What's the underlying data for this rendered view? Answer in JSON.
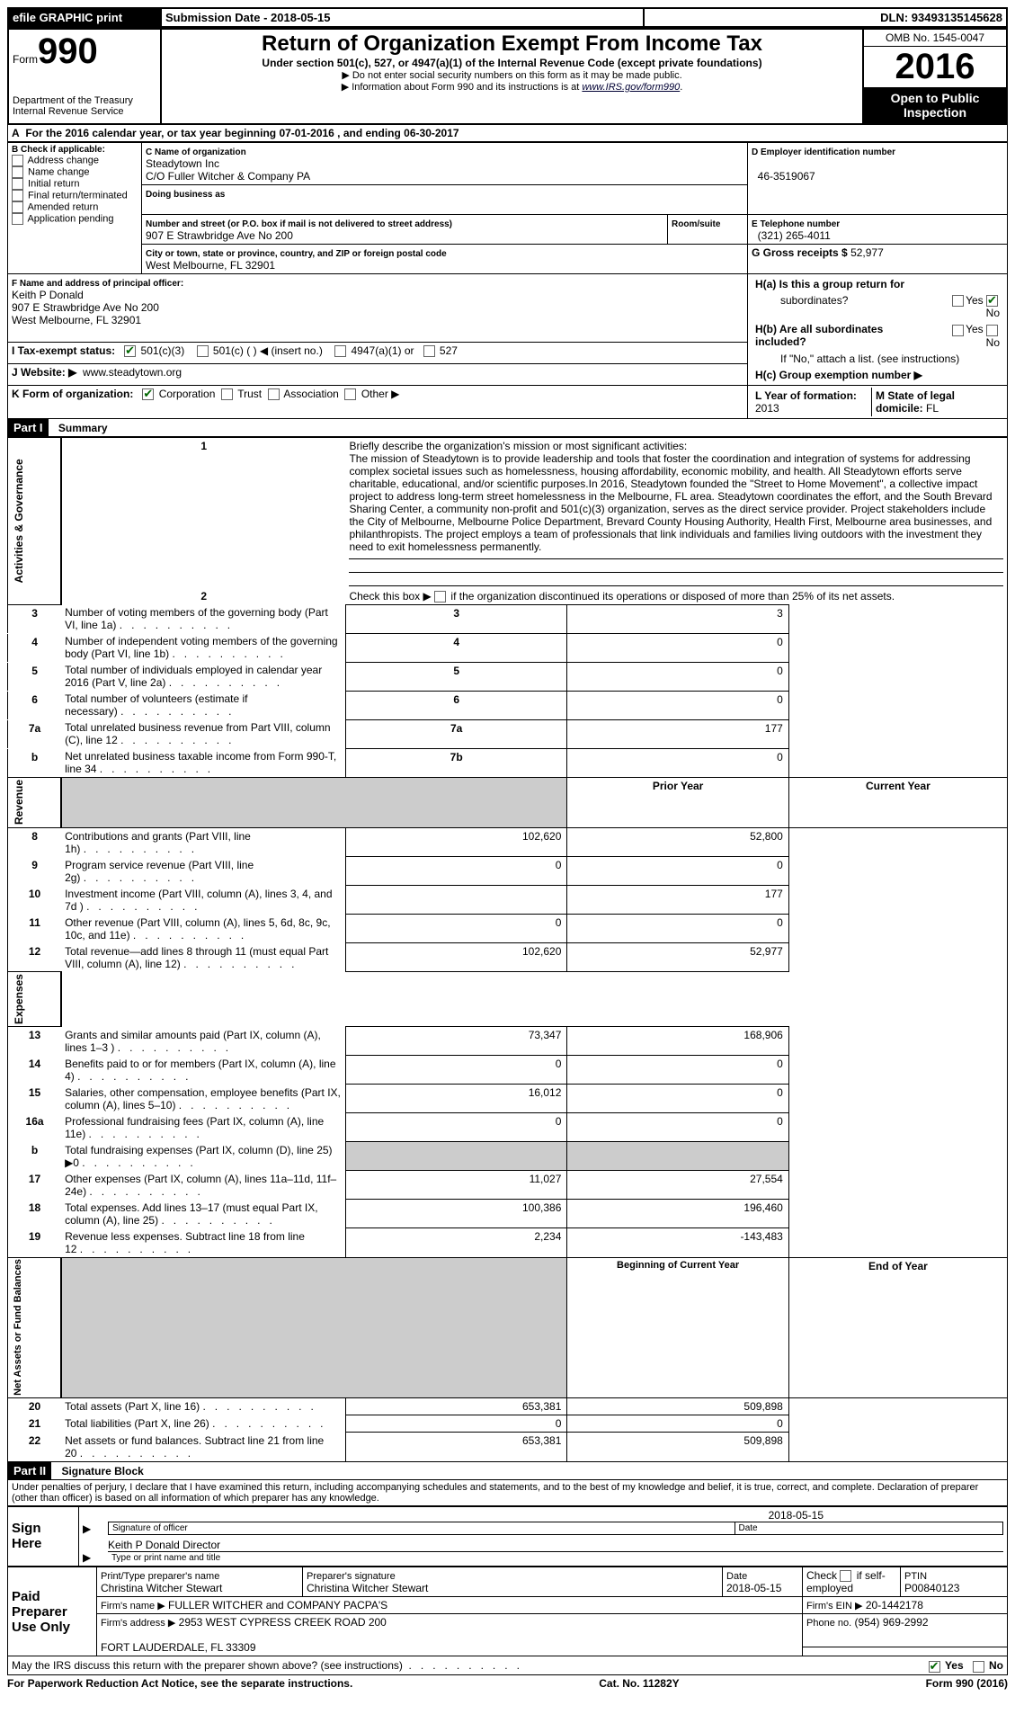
{
  "header": {
    "efile": "efile GRAPHIC print",
    "submission_label": "Submission Date - 2018-05-15",
    "dln_label": "DLN: 93493135145628",
    "form_word": "Form",
    "form_no": "990",
    "dept": "Department of the Treasury",
    "irs": "Internal Revenue Service",
    "title": "Return of Organization Exempt From Income Tax",
    "subtitle": "Under section 501(c), 527, or 4947(a)(1) of the Internal Revenue Code (except private foundations)",
    "note1": "Do not enter social security numbers on this form as it may be made public.",
    "note2": "Information about Form 990 and its instructions is at ",
    "url": "www.IRS.gov/form990",
    "omb": "OMB No. 1545-0047",
    "year": "2016",
    "open": "Open to Public Inspection"
  },
  "a": {
    "banner": "For the 2016 calendar year, or tax year beginning 07-01-2016  , and ending 06-30-2017"
  },
  "b": {
    "header": "Check if applicable:",
    "items": [
      "Address change",
      "Name change",
      "Initial return",
      "Final return/terminated",
      "Amended return",
      "Application pending"
    ]
  },
  "c": {
    "label": "C Name of organization",
    "name": "Steadytown Inc",
    "co": "C/O Fuller Witcher & Company PA",
    "dba_label": "Doing business as",
    "addr_label": "Number and street (or P.O. box if mail is not delivered to street address)",
    "room_label": "Room/suite",
    "addr": "907 E Strawbridge Ave No 200",
    "city_label": "City or town, state or province, country, and ZIP or foreign postal code",
    "city": "West Melbourne, FL  32901"
  },
  "d": {
    "label": "D Employer identification number",
    "val": "46-3519067"
  },
  "e": {
    "label": "E Telephone number",
    "val": "(321) 265-4011"
  },
  "g": {
    "label": "G Gross receipts $",
    "val": "52,977"
  },
  "f": {
    "label": "F  Name and address of principal officer:",
    "name": "Keith P Donald",
    "addr": "907 E Strawbridge Ave No 200",
    "city": "West Melbourne, FL  32901"
  },
  "h": {
    "a_label": "H(a)  Is this a group return for",
    "a_sub": "subordinates?",
    "b_label": "H(b)  Are all subordinates included?",
    "b_note": "If \"No,\" attach a list. (see instructions)",
    "c_label": "H(c)  Group exemption number ▶",
    "yes": "Yes",
    "no": "No"
  },
  "i": {
    "label": "I  Tax-exempt status:",
    "opts": [
      "501(c)(3)",
      "501(c) (  ) ◀ (insert no.)",
      "4947(a)(1) or",
      "527"
    ]
  },
  "j": {
    "label": "J  Website: ▶",
    "val": "www.steadytown.org"
  },
  "k": {
    "label": "K Form of organization:",
    "opts": [
      "Corporation",
      "Trust",
      "Association",
      "Other ▶"
    ]
  },
  "l": {
    "label": "L Year of formation:",
    "val": "2013"
  },
  "m": {
    "label": "M State of legal domicile:",
    "val": "FL"
  },
  "partI": {
    "label": "Part I",
    "title": "Summary"
  },
  "summary": {
    "mission_label": "Briefly describe the organization's mission or most significant activities:",
    "mission": "The mission of Steadytown is to provide leadership and tools that foster the coordination and integration of systems for addressing complex societal issues such as homelessness, housing affordability, economic mobility, and health. All Steadytown efforts serve charitable, educational, and/or scientific purposes.In 2016, Steadytown founded the \"Street to Home Movement\", a collective impact project to address long-term street homelessness in the Melbourne, FL area. Steadytown coordinates the effort, and the South Brevard Sharing Center, a community non-profit and 501(c)(3) organization, serves as the direct service provider. Project stakeholders include the City of Melbourne, Melbourne Police Department, Brevard County Housing Authority, Health First, Melbourne area businesses, and philanthropists. The project employs a team of professionals that link individuals and families living outdoors with the investment they need to exit homelessness permanently.",
    "line2": "Check this box ▶      if the organization discontinued its operations or disposed of more than 25% of its net assets.",
    "rows_ag": [
      {
        "n": "3",
        "t": "Number of voting members of the governing body (Part VI, line 1a)",
        "box": "3",
        "v": "3"
      },
      {
        "n": "4",
        "t": "Number of independent voting members of the governing body (Part VI, line 1b)",
        "box": "4",
        "v": "0"
      },
      {
        "n": "5",
        "t": "Total number of individuals employed in calendar year 2016 (Part V, line 2a)",
        "box": "5",
        "v": "0"
      },
      {
        "n": "6",
        "t": "Total number of volunteers (estimate if necessary)",
        "box": "6",
        "v": "0"
      },
      {
        "n": "7a",
        "t": "Total unrelated business revenue from Part VIII, column (C), line 12",
        "box": "7a",
        "v": "177"
      },
      {
        "n": "b",
        "t": "Net unrelated business taxable income from Form 990-T, line 34",
        "box": "7b",
        "v": "0"
      }
    ],
    "col_prior": "Prior Year",
    "col_curr": "Current Year",
    "revenue": [
      {
        "n": "8",
        "t": "Contributions and grants (Part VIII, line 1h)",
        "p": "102,620",
        "c": "52,800"
      },
      {
        "n": "9",
        "t": "Program service revenue (Part VIII, line 2g)",
        "p": "0",
        "c": "0"
      },
      {
        "n": "10",
        "t": "Investment income (Part VIII, column (A), lines 3, 4, and 7d )",
        "p": "",
        "c": "177"
      },
      {
        "n": "11",
        "t": "Other revenue (Part VIII, column (A), lines 5, 6d, 8c, 9c, 10c, and 11e)",
        "p": "0",
        "c": "0"
      },
      {
        "n": "12",
        "t": "Total revenue—add lines 8 through 11 (must equal Part VIII, column (A), line 12)",
        "p": "102,620",
        "c": "52,977"
      }
    ],
    "expenses": [
      {
        "n": "13",
        "t": "Grants and similar amounts paid (Part IX, column (A), lines 1–3 )",
        "p": "73,347",
        "c": "168,906"
      },
      {
        "n": "14",
        "t": "Benefits paid to or for members (Part IX, column (A), line 4)",
        "p": "0",
        "c": "0"
      },
      {
        "n": "15",
        "t": "Salaries, other compensation, employee benefits (Part IX, column (A), lines 5–10)",
        "p": "16,012",
        "c": "0"
      },
      {
        "n": "16a",
        "t": "Professional fundraising fees (Part IX, column (A), line 11e)",
        "p": "0",
        "c": "0"
      },
      {
        "n": "b",
        "t": "Total fundraising expenses (Part IX, column (D), line 25) ▶0",
        "p": "",
        "c": "",
        "grey": true
      },
      {
        "n": "17",
        "t": "Other expenses (Part IX, column (A), lines 11a–11d, 11f–24e)",
        "p": "11,027",
        "c": "27,554"
      },
      {
        "n": "18",
        "t": "Total expenses. Add lines 13–17 (must equal Part IX, column (A), line 25)",
        "p": "100,386",
        "c": "196,460"
      },
      {
        "n": "19",
        "t": "Revenue less expenses. Subtract line 18 from line 12",
        "p": "2,234",
        "c": "-143,483"
      }
    ],
    "col_boy": "Beginning of Current Year",
    "col_eoy": "End of Year",
    "netassets": [
      {
        "n": "20",
        "t": "Total assets (Part X, line 16)",
        "p": "653,381",
        "c": "509,898"
      },
      {
        "n": "21",
        "t": "Total liabilities (Part X, line 26)",
        "p": "0",
        "c": "0"
      },
      {
        "n": "22",
        "t": "Net assets or fund balances. Subtract line 21 from line 20",
        "p": "653,381",
        "c": "509,898"
      }
    ],
    "side_ag": "Activities & Governance",
    "side_rev": "Revenue",
    "side_exp": "Expenses",
    "side_na": "Net Assets or Fund Balances"
  },
  "partII": {
    "label": "Part II",
    "title": "Signature Block",
    "decl": "Under penalties of perjury, I declare that I have examined this return, including accompanying schedules and statements, and to the best of my knowledge and belief, it is true, correct, and complete. Declaration of preparer (other than officer) is based on all information of which preparer has any knowledge."
  },
  "sign": {
    "here": "Sign Here",
    "sig_of_officer": "Signature of officer",
    "date": "Date",
    "date_val": "2018-05-15",
    "name": "Keith P Donald  Director",
    "type_label": "Type or print name and title"
  },
  "preparer": {
    "title": "Paid Preparer Use Only",
    "print_label": "Print/Type preparer's name",
    "print_val": "Christina Witcher Stewart",
    "sig_label": "Preparer's signature",
    "sig_val": "Christina Witcher Stewart",
    "date_label": "Date",
    "date_val": "2018-05-15",
    "check_label": "Check       if self-employed",
    "ptin_label": "PTIN",
    "ptin_val": "P00840123",
    "firm_name_label": "Firm's name    ▶",
    "firm_name": "FULLER WITCHER and COMPANY PACPA'S",
    "firm_ein_label": "Firm's EIN ▶",
    "firm_ein": "20-1442178",
    "firm_addr_label": "Firm's address ▶",
    "firm_addr1": "2953 WEST CYPRESS CREEK ROAD 200",
    "firm_addr2": "FORT LAUDERDALE, FL  33309",
    "phone_label": "Phone no.",
    "phone": "(954) 969-2992"
  },
  "discuss": {
    "q": "May the IRS discuss this return with the preparer shown above? (see instructions)",
    "yes": "Yes",
    "no": "No"
  },
  "footer": {
    "left": "For Paperwork Reduction Act Notice, see the separate instructions.",
    "mid": "Cat. No. 11282Y",
    "right": "Form 990 (2016)"
  }
}
